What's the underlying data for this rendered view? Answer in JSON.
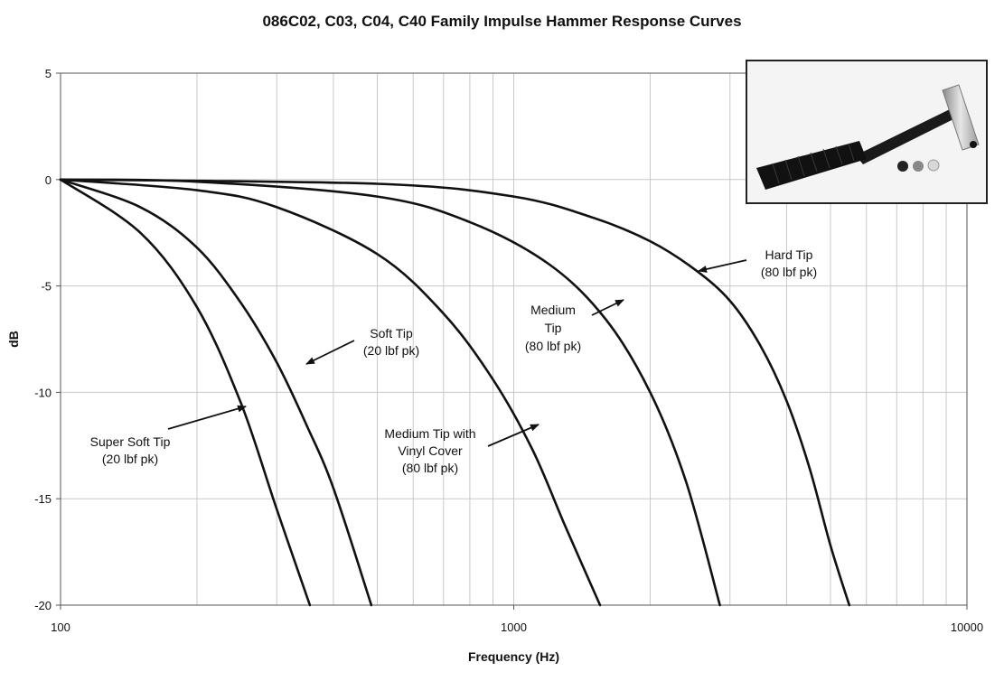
{
  "chart_data": {
    "type": "line",
    "title": "086C02, C03, C04, C40 Family Impulse Hammer Response Curves",
    "xlabel": "Frequency (Hz)",
    "ylabel": "dB",
    "xscale": "log",
    "xlim": [
      100,
      10000
    ],
    "ylim": [
      -20,
      5
    ],
    "x_ticks": [
      100,
      1000,
      10000
    ],
    "x_tick_labels": [
      "100",
      "1000",
      "10000"
    ],
    "y_ticks": [
      5,
      0,
      -5,
      -10,
      -15,
      -20
    ],
    "y_tick_labels": [
      "5",
      "0",
      "-5",
      "-10",
      "-15",
      "-20"
    ],
    "grid": true,
    "legend": "none",
    "series": [
      {
        "x": [
          100,
          150,
          200,
          250,
          300,
          355
        ],
        "y": [
          0,
          -2.5,
          -6,
          -10.5,
          -15.5,
          -20
        ]
      },
      {
        "x": [
          100,
          150,
          200,
          250,
          300,
          350,
          400,
          485
        ],
        "y": [
          0,
          -1.3,
          -3.2,
          -5.8,
          -8.6,
          -11.6,
          -14.5,
          -20
        ]
      },
      {
        "x": [
          100,
          200,
          300,
          500,
          700,
          900,
          1100,
          1300,
          1550
        ],
        "y": [
          0,
          -0.5,
          -1.3,
          -3.5,
          -6.3,
          -9.4,
          -12.7,
          -16.3,
          -20
        ]
      },
      {
        "x": [
          100,
          200,
          500,
          800,
          1200,
          1600,
          2000,
          2400,
          2850
        ],
        "y": [
          0,
          -0.1,
          -0.8,
          -2,
          -4,
          -6.6,
          -10,
          -14.2,
          -20
        ]
      },
      {
        "x": [
          100,
          500,
          1000,
          1500,
          2000,
          2500,
          3000,
          3500,
          4000,
          4500,
          5000,
          5500
        ],
        "y": [
          0,
          -0.2,
          -0.8,
          -1.8,
          -2.9,
          -4.2,
          -5.7,
          -7.8,
          -10.4,
          -13.6,
          -17.2,
          -20
        ]
      }
    ],
    "annotations": [
      {
        "lines": [
          "Hard Tip",
          "(80 lbf pk)"
        ]
      },
      {
        "lines": [
          "Medium",
          "Tip",
          "(80 lbf pk)"
        ]
      },
      {
        "lines": [
          "Soft Tip",
          "(20 lbf pk)"
        ]
      },
      {
        "lines": [
          "Medium Tip with",
          "Vinyl Cover",
          "(80 lbf pk)"
        ]
      },
      {
        "lines": [
          "Super Soft Tip",
          "(20 lbf pk)"
        ]
      }
    ],
    "colors": {
      "curve": "#111111",
      "grid": "#c8c8c8",
      "axis": "#555555"
    }
  }
}
